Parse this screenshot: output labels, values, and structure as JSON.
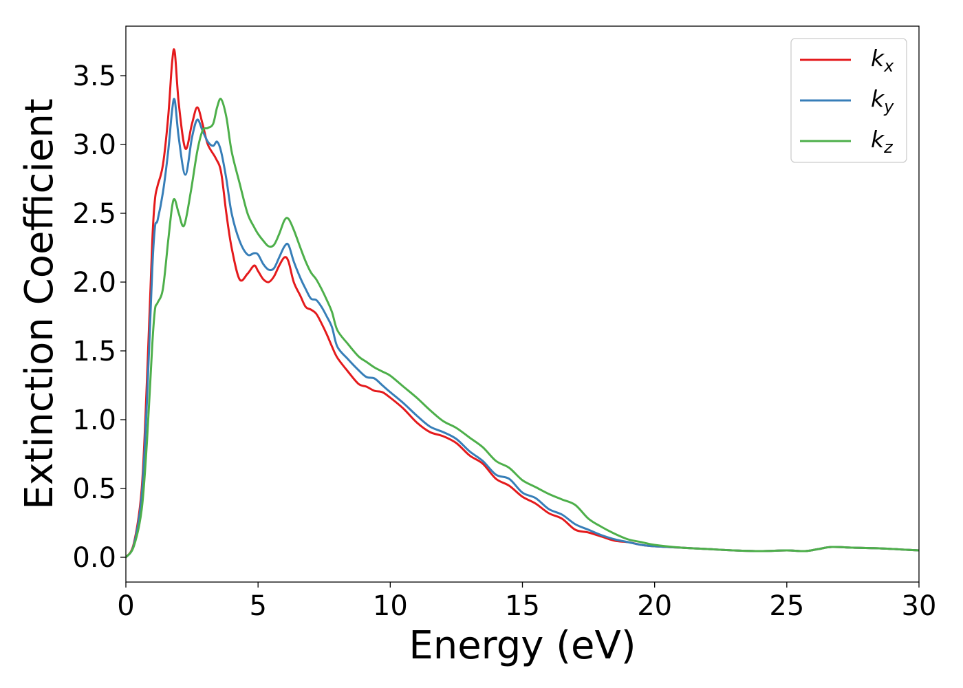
{
  "chart_data": {
    "type": "line",
    "title": "",
    "xlabel": "Energy (eV)",
    "ylabel": "Extinction Coefficient",
    "xlim": [
      0,
      30
    ],
    "ylim": [
      -0.18,
      3.86
    ],
    "xticks": [
      0,
      5,
      10,
      15,
      20,
      25,
      30
    ],
    "xtick_labels": [
      "0",
      "5",
      "10",
      "15",
      "20",
      "25",
      "30"
    ],
    "yticks": [
      0.0,
      0.5,
      1.0,
      1.5,
      2.0,
      2.5,
      3.0,
      3.5
    ],
    "ytick_labels": [
      "0.0",
      "0.5",
      "1.0",
      "1.5",
      "2.0",
      "2.5",
      "3.0",
      "3.5"
    ],
    "grid": false,
    "legend_position": "top-right",
    "series": [
      {
        "name": "kx",
        "label_main": "k",
        "label_sub": "x",
        "color": "#e41a1c",
        "x": [
          0,
          0.3,
          0.6,
          0.8,
          1.0,
          1.1,
          1.2,
          1.4,
          1.6,
          1.75,
          1.85,
          2.0,
          2.25,
          2.5,
          2.7,
          2.9,
          3.1,
          3.4,
          3.6,
          3.8,
          4.0,
          4.3,
          4.6,
          4.85,
          5.0,
          5.2,
          5.4,
          5.6,
          5.8,
          6.0,
          6.15,
          6.35,
          6.6,
          6.8,
          7.0,
          7.2,
          7.4,
          7.6,
          7.8,
          8.0,
          8.4,
          8.8,
          9.1,
          9.4,
          9.7,
          10.0,
          10.5,
          11.0,
          11.5,
          12.0,
          12.5,
          13.0,
          13.5,
          14.0,
          14.5,
          15.0,
          15.5,
          16.0,
          16.5,
          17.0,
          17.5,
          18.0,
          18.5,
          19.0,
          19.5,
          20.0,
          21.0,
          22.0,
          23.0,
          24.0,
          25.0,
          25.7,
          26.2,
          26.7,
          27.5,
          28.5,
          29.5,
          30.0
        ],
        "y": [
          0.0,
          0.1,
          0.5,
          1.3,
          2.3,
          2.6,
          2.7,
          2.85,
          3.2,
          3.6,
          3.67,
          3.3,
          2.97,
          3.15,
          3.27,
          3.15,
          3.0,
          2.9,
          2.8,
          2.5,
          2.25,
          2.02,
          2.06,
          2.12,
          2.08,
          2.02,
          2.0,
          2.04,
          2.12,
          2.18,
          2.15,
          2.0,
          1.9,
          1.82,
          1.8,
          1.77,
          1.7,
          1.62,
          1.53,
          1.45,
          1.35,
          1.26,
          1.24,
          1.21,
          1.2,
          1.16,
          1.08,
          0.98,
          0.91,
          0.88,
          0.83,
          0.74,
          0.68,
          0.57,
          0.52,
          0.44,
          0.39,
          0.32,
          0.28,
          0.2,
          0.18,
          0.15,
          0.12,
          0.11,
          0.09,
          0.08,
          0.07,
          0.06,
          0.05,
          0.045,
          0.05,
          0.045,
          0.06,
          0.075,
          0.07,
          0.065,
          0.055,
          0.05
        ]
      },
      {
        "name": "ky",
        "label_main": "k",
        "label_sub": "y",
        "color": "#377eb8",
        "x": [
          0,
          0.3,
          0.6,
          0.8,
          1.0,
          1.1,
          1.2,
          1.4,
          1.6,
          1.75,
          1.85,
          2.0,
          2.25,
          2.5,
          2.7,
          2.9,
          3.1,
          3.3,
          3.45,
          3.6,
          3.8,
          4.0,
          4.3,
          4.6,
          4.85,
          5.0,
          5.2,
          5.4,
          5.6,
          5.8,
          6.0,
          6.15,
          6.35,
          6.6,
          6.8,
          7.0,
          7.2,
          7.4,
          7.6,
          7.8,
          8.0,
          8.4,
          8.8,
          9.1,
          9.4,
          9.7,
          10.0,
          10.5,
          11.0,
          11.5,
          12.0,
          12.5,
          13.0,
          13.5,
          14.0,
          14.5,
          15.0,
          15.5,
          16.0,
          16.5,
          17.0,
          17.5,
          18.0,
          18.5,
          19.0,
          19.5,
          20.0,
          21.0,
          22.0,
          23.0,
          24.0,
          25.0,
          25.7,
          26.2,
          26.7,
          27.5,
          28.5,
          29.5,
          30.0
        ],
        "y": [
          0.0,
          0.09,
          0.45,
          1.15,
          2.1,
          2.4,
          2.45,
          2.65,
          2.95,
          3.25,
          3.32,
          3.05,
          2.78,
          3.05,
          3.18,
          3.1,
          3.02,
          2.99,
          3.02,
          2.95,
          2.75,
          2.5,
          2.3,
          2.2,
          2.21,
          2.2,
          2.13,
          2.09,
          2.1,
          2.18,
          2.26,
          2.27,
          2.15,
          2.03,
          1.95,
          1.88,
          1.87,
          1.82,
          1.75,
          1.67,
          1.53,
          1.44,
          1.36,
          1.31,
          1.3,
          1.25,
          1.2,
          1.12,
          1.03,
          0.95,
          0.91,
          0.86,
          0.77,
          0.7,
          0.6,
          0.57,
          0.47,
          0.43,
          0.35,
          0.31,
          0.24,
          0.2,
          0.16,
          0.13,
          0.11,
          0.09,
          0.08,
          0.07,
          0.06,
          0.05,
          0.045,
          0.05,
          0.045,
          0.06,
          0.075,
          0.07,
          0.065,
          0.055,
          0.05
        ]
      },
      {
        "name": "kz",
        "label_main": "k",
        "label_sub": "z",
        "color": "#4daf4a",
        "x": [
          0,
          0.3,
          0.6,
          0.8,
          1.0,
          1.1,
          1.2,
          1.4,
          1.6,
          1.75,
          1.85,
          2.0,
          2.2,
          2.45,
          2.7,
          2.9,
          3.1,
          3.3,
          3.45,
          3.6,
          3.8,
          4.0,
          4.3,
          4.6,
          4.85,
          5.0,
          5.2,
          5.4,
          5.6,
          5.8,
          6.0,
          6.15,
          6.35,
          6.6,
          6.8,
          7.0,
          7.2,
          7.4,
          7.6,
          7.8,
          8.0,
          8.4,
          8.8,
          9.1,
          9.4,
          9.7,
          10.0,
          10.5,
          11.0,
          11.5,
          12.0,
          12.5,
          13.0,
          13.5,
          14.0,
          14.5,
          15.0,
          15.5,
          16.0,
          16.5,
          17.0,
          17.5,
          18.0,
          18.5,
          19.0,
          19.5,
          20.0,
          21.0,
          22.0,
          23.0,
          24.0,
          25.0,
          25.7,
          26.2,
          26.7,
          27.5,
          28.5,
          29.5,
          30.0
        ],
        "y": [
          0.0,
          0.08,
          0.35,
          0.85,
          1.55,
          1.8,
          1.85,
          1.95,
          2.3,
          2.55,
          2.6,
          2.5,
          2.41,
          2.65,
          2.95,
          3.1,
          3.12,
          3.15,
          3.27,
          3.33,
          3.2,
          2.95,
          2.72,
          2.5,
          2.4,
          2.35,
          2.3,
          2.26,
          2.27,
          2.35,
          2.45,
          2.46,
          2.38,
          2.25,
          2.15,
          2.07,
          2.02,
          1.95,
          1.87,
          1.78,
          1.65,
          1.55,
          1.46,
          1.42,
          1.38,
          1.35,
          1.32,
          1.24,
          1.16,
          1.07,
          0.99,
          0.94,
          0.87,
          0.8,
          0.7,
          0.65,
          0.56,
          0.51,
          0.46,
          0.42,
          0.38,
          0.28,
          0.22,
          0.17,
          0.13,
          0.11,
          0.09,
          0.07,
          0.06,
          0.05,
          0.045,
          0.05,
          0.045,
          0.06,
          0.075,
          0.07,
          0.065,
          0.055,
          0.05
        ]
      }
    ]
  }
}
